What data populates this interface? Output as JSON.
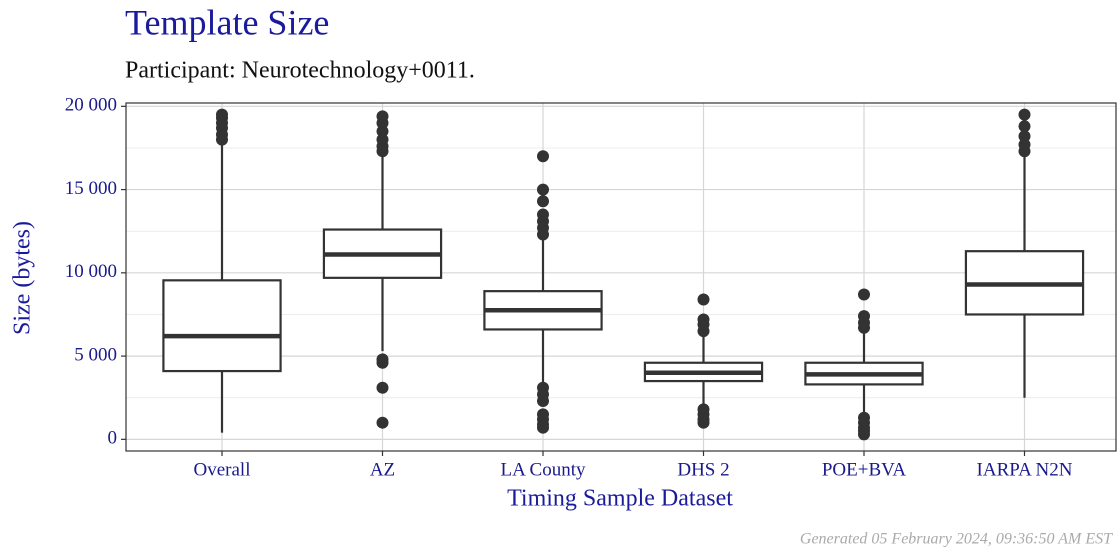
{
  "chart_data": {
    "type": "boxplot",
    "title": "Template Size",
    "subtitle": "Participant: Neurotechnology+0011.",
    "x_label": "Timing Sample Dataset",
    "y_label": "Size (bytes)",
    "footer": "Generated 05 February 2024, 09:36:50 AM EST",
    "categories": [
      "Overall",
      "AZ",
      "LA County",
      "DHS 2",
      "POE+BVA",
      "IARPA N2N"
    ],
    "whisker_low": [
      400,
      5300,
      3300,
      2000,
      1500,
      2500
    ],
    "q1": [
      4100,
      9700,
      6600,
      3500,
      3300,
      7500
    ],
    "median": [
      6200,
      11100,
      7750,
      4000,
      3900,
      9300
    ],
    "q3": [
      9550,
      12600,
      8900,
      4600,
      4600,
      11300
    ],
    "whisker_high": [
      17800,
      17000,
      12000,
      6200,
      6400,
      17000
    ],
    "outliers": [
      [
        18000,
        18300,
        18700,
        19000,
        19300,
        19500
      ],
      [
        17300,
        17600,
        18000,
        18500,
        19000,
        19400,
        4800,
        4600,
        3100,
        1000
      ],
      [
        12300,
        12700,
        13100,
        13500,
        14300,
        15000,
        17000,
        3100,
        2700,
        2300,
        1500,
        1200,
        900,
        700
      ],
      [
        6500,
        6900,
        7200,
        8400,
        1800,
        1500,
        1200,
        1000
      ],
      [
        6700,
        7000,
        7400,
        8700,
        1300,
        1000,
        700,
        500,
        300
      ],
      [
        17300,
        17700,
        18200,
        18800,
        19500
      ]
    ],
    "box_color": "#333333",
    "ylim": [
      -700,
      20200
    ],
    "yticks": [
      0,
      {
        "value": 5000,
        "label": "5 000"
      },
      {
        "value": 10000,
        "label": "10 000"
      },
      {
        "value": 15000,
        "label": "15 000"
      },
      {
        "value": 20000,
        "label": "20 000"
      }
    ],
    "minor_yticks": [
      2500,
      7500,
      12500,
      17500
    ],
    "grid": true
  }
}
